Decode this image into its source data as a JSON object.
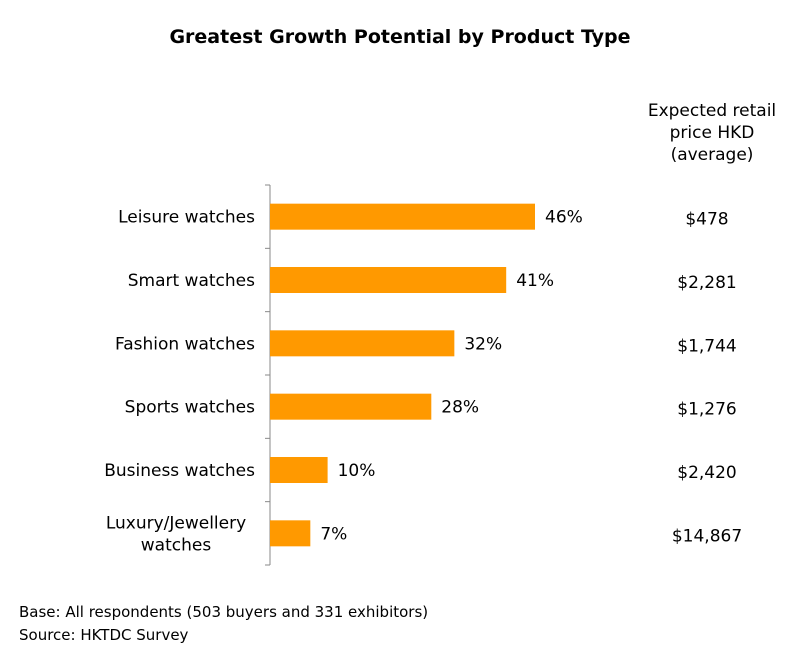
{
  "chart_data": {
    "type": "bar",
    "orientation": "horizontal",
    "title": "Greatest Growth Potential by Product Type",
    "categories": [
      "Leisure watches",
      "Smart watches",
      "Fashion watches",
      "Sports watches",
      "Business watches",
      "Luxury/Jewellery watches"
    ],
    "category_lines": [
      [
        "Leisure watches"
      ],
      [
        "Smart watches"
      ],
      [
        "Fashion watches"
      ],
      [
        "Sports watches"
      ],
      [
        "Business watches"
      ],
      [
        "Luxury/Jewellery",
        "watches"
      ]
    ],
    "values": [
      46,
      41,
      32,
      28,
      10,
      7
    ],
    "value_labels": [
      "46%",
      "41%",
      "32%",
      "28%",
      "10%",
      "7%"
    ],
    "price_column_header": "Expected retail\nprice HKD\n(average)",
    "prices": [
      "$478",
      "$2,281",
      "$1,744",
      "$1,276",
      "$2,420",
      "$14,867"
    ],
    "xlim": [
      0,
      100
    ],
    "grid": false,
    "bar_color": "#FF9900"
  },
  "footnotes": {
    "base": "Base: All respondents (503 buyers and 331 exhibitors)",
    "source": "Source: HKTDC Survey"
  }
}
